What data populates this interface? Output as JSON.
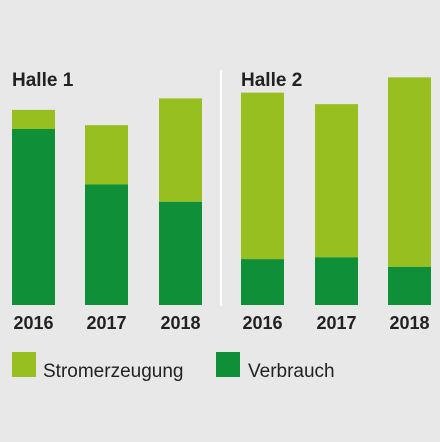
{
  "colors": {
    "stromerzeugung": "#97bf1f",
    "verbrauch": "#0f9038",
    "background": "#e8e8e8"
  },
  "chart_data": [
    {
      "type": "bar",
      "stacked": true,
      "title": "Halle 1",
      "categories": [
        "2016",
        "2017",
        "2018"
      ],
      "series": [
        {
          "name": "Verbrauch",
          "values": [
            92,
            63,
            54
          ]
        },
        {
          "name": "Stromerzeugung",
          "values": [
            10,
            31,
            54
          ]
        }
      ],
      "ylim": [
        0,
        115
      ]
    },
    {
      "type": "bar",
      "stacked": true,
      "title": "Halle 2",
      "categories": [
        "2016",
        "2017",
        "2018"
      ],
      "series": [
        {
          "name": "Verbrauch",
          "values": [
            24,
            25,
            20
          ]
        },
        {
          "name": "Stromerzeugung",
          "values": [
            87,
            80,
            99
          ]
        }
      ],
      "ylim": [
        0,
        115
      ]
    }
  ],
  "legend": {
    "placement": "bottom-left",
    "items": [
      "Stromerzeugung",
      "Verbrauch"
    ]
  }
}
